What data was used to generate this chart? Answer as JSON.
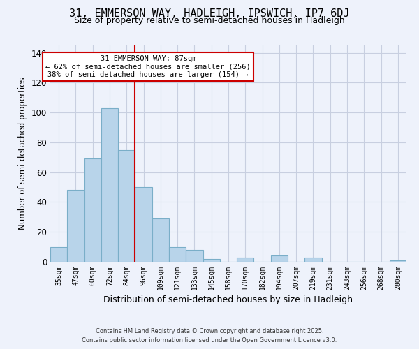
{
  "title": "31, EMMERSON WAY, HADLEIGH, IPSWICH, IP7 6DJ",
  "subtitle": "Size of property relative to semi-detached houses in Hadleigh",
  "xlabel": "Distribution of semi-detached houses by size in Hadleigh",
  "ylabel": "Number of semi-detached properties",
  "categories": [
    "35sqm",
    "47sqm",
    "60sqm",
    "72sqm",
    "84sqm",
    "96sqm",
    "109sqm",
    "121sqm",
    "133sqm",
    "145sqm",
    "158sqm",
    "170sqm",
    "182sqm",
    "194sqm",
    "207sqm",
    "219sqm",
    "231sqm",
    "243sqm",
    "256sqm",
    "268sqm",
    "280sqm"
  ],
  "values": [
    10,
    48,
    69,
    103,
    75,
    50,
    29,
    10,
    8,
    2,
    0,
    3,
    0,
    4,
    0,
    3,
    0,
    0,
    0,
    0,
    1
  ],
  "bar_color": "#b8d4ea",
  "bar_edge_color": "#7aaec8",
  "vline_color": "#cc0000",
  "annotation_title": "31 EMMERSON WAY: 87sqm",
  "annotation_line1": "← 62% of semi-detached houses are smaller (256)",
  "annotation_line2": "38% of semi-detached houses are larger (154) →",
  "annotation_box_facecolor": "#ffffff",
  "annotation_box_edgecolor": "#cc0000",
  "ylim": [
    0,
    145
  ],
  "yticks": [
    0,
    20,
    40,
    60,
    80,
    100,
    120,
    140
  ],
  "footnote1": "Contains HM Land Registry data © Crown copyright and database right 2025.",
  "footnote2": "Contains public sector information licensed under the Open Government Licence v3.0.",
  "background_color": "#eef2fb",
  "grid_color": "#c8cfe0",
  "title_fontsize": 11,
  "subtitle_fontsize": 9,
  "ylabel_text": "Number of semi-detached properties"
}
